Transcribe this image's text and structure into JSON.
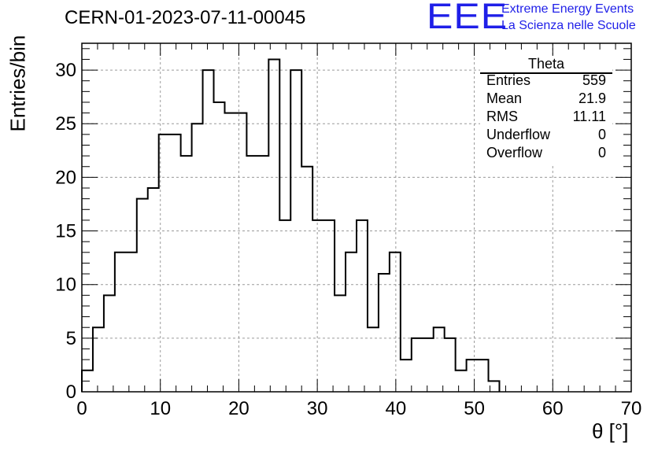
{
  "chart_data": {
    "type": "histogram",
    "title": "CERN-01-2023-07-11-00045",
    "xlabel": "θ [°]",
    "ylabel": "Entries/bin",
    "xlim": [
      0,
      70
    ],
    "ylim": [
      0,
      32.5
    ],
    "bin_width": 1.4,
    "grid": true,
    "x_ticks": [
      0,
      10,
      20,
      30,
      40,
      50,
      60,
      70
    ],
    "y_ticks": [
      0,
      5,
      10,
      15,
      20,
      25,
      30
    ],
    "bin_edges": [
      0,
      1.4,
      2.8,
      4.2,
      5.6,
      7.0,
      8.4,
      9.8,
      11.2,
      12.6,
      14.0,
      15.4,
      16.8,
      18.2,
      19.6,
      21.0,
      22.4,
      23.8,
      25.2,
      26.6,
      28.0,
      29.4,
      30.8,
      32.2,
      33.6,
      35.0,
      36.4,
      37.8,
      39.2,
      40.6,
      42.0,
      43.4,
      44.8,
      46.2,
      47.6,
      49.0,
      50.4,
      51.8,
      53.2
    ],
    "values": [
      2,
      6,
      9,
      13,
      13,
      18,
      19,
      24,
      24,
      22,
      25,
      30,
      27,
      26,
      26,
      22,
      22,
      31,
      16,
      30,
      21,
      16,
      16,
      9,
      13,
      16,
      6,
      11,
      13,
      3,
      5,
      5,
      6,
      5,
      2,
      3,
      3,
      1
    ]
  },
  "stats_box": {
    "title": "Theta",
    "rows": [
      {
        "label": "Entries",
        "value": "559"
      },
      {
        "label": "Mean",
        "value": "21.9"
      },
      {
        "label": "RMS",
        "value": "11.11"
      },
      {
        "label": "Underflow",
        "value": "0"
      },
      {
        "label": "Overflow",
        "value": "0"
      }
    ]
  },
  "logo": {
    "mark": "EEE",
    "line1": "Extreme Energy Events",
    "line2": "La Scienza nelle Scuole",
    "color": "#1f1fe8"
  }
}
